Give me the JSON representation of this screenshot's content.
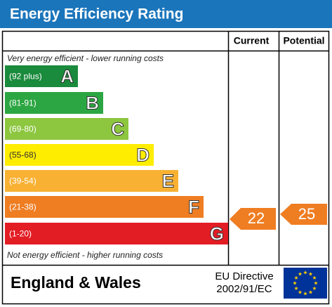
{
  "header": {
    "title": "Energy Efficiency Rating"
  },
  "columns": {
    "current": "Current",
    "potential": "Potential"
  },
  "top_note": "Very energy efficient - lower running costs",
  "bottom_note": "Not energy efficient - higher running costs",
  "bands": [
    {
      "range": "(92 plus)",
      "letter": "A",
      "color": "#1a8a3c"
    },
    {
      "range": "(81-91)",
      "letter": "B",
      "color": "#2ca642"
    },
    {
      "range": "(69-80)",
      "letter": "C",
      "color": "#8dc63f"
    },
    {
      "range": "(55-68)",
      "letter": "D",
      "color": "#ffed00"
    },
    {
      "range": "(39-54)",
      "letter": "E",
      "color": "#f8b133"
    },
    {
      "range": "(21-38)",
      "letter": "F",
      "color": "#ef7d22"
    },
    {
      "range": "(1-20)",
      "letter": "G",
      "color": "#e31d24"
    }
  ],
  "ratings": {
    "current": 22,
    "potential": 25,
    "color": "#ef7d22"
  },
  "footer": {
    "region": "England & Wales",
    "directive_line1": "EU Directive",
    "directive_line2": "2002/91/EC"
  }
}
